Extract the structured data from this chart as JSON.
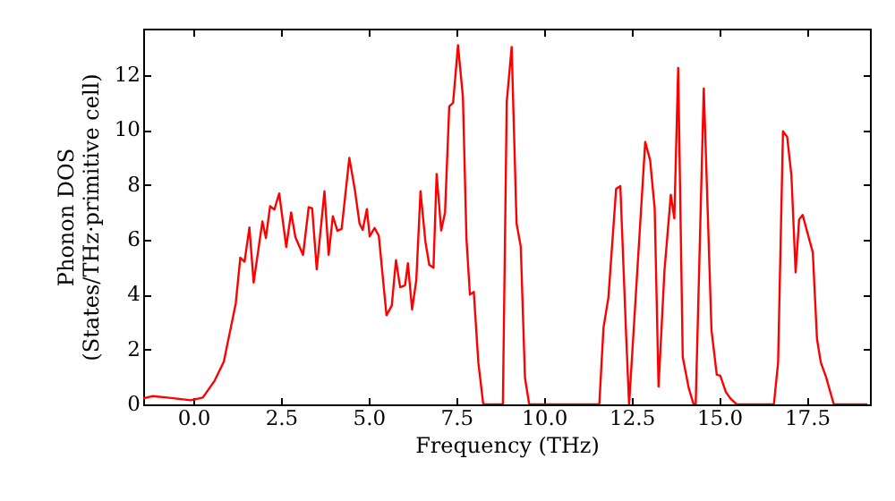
{
  "chart_data": {
    "type": "line",
    "xlabel": "Frequency (THz)",
    "ylabel": "Phonon DOS\n(States/THz·primitive cell)",
    "x": [
      -1.43,
      -1.17,
      -0.74,
      -0.07,
      0.27,
      0.61,
      0.87,
      1.21,
      1.34,
      1.46,
      1.6,
      1.72,
      1.97,
      2.07,
      2.19,
      2.31,
      2.45,
      2.65,
      2.79,
      2.91,
      3.13,
      3.29,
      3.39,
      3.52,
      3.74,
      3.86,
      3.98,
      4.11,
      4.23,
      4.45,
      4.61,
      4.74,
      4.83,
      4.95,
      5.03,
      5.17,
      5.29,
      5.51,
      5.66,
      5.78,
      5.9,
      6.04,
      6.12,
      6.24,
      6.36,
      6.48,
      6.62,
      6.73,
      6.85,
      6.94,
      7.07,
      7.18,
      7.3,
      7.41,
      7.55,
      7.69,
      7.79,
      7.89,
      8.0,
      8.13,
      8.27,
      8.83,
      8.94,
      9.08,
      9.22,
      9.34,
      9.46,
      9.58,
      11.58,
      11.7,
      11.84,
      12.06,
      12.18,
      12.35,
      12.43,
      12.89,
      13.03,
      13.16,
      13.27,
      13.44,
      13.62,
      13.72,
      13.83,
      13.96,
      14.13,
      14.27,
      14.33,
      14.56,
      14.78,
      14.93,
      15.03,
      15.19,
      15.33,
      15.5,
      16.56,
      16.68,
      16.82,
      16.94,
      17.06,
      17.18,
      17.28,
      17.38,
      17.53,
      17.67,
      17.79,
      17.9,
      18.05,
      18.16,
      18.27,
      19.23
    ],
    "series": [
      {
        "color": "#ff0000",
        "values": [
          0.22,
          0.3,
          0.25,
          0.15,
          0.25,
          0.87,
          1.56,
          3.68,
          5.35,
          5.2,
          6.45,
          4.44,
          6.67,
          6.07,
          7.23,
          7.1,
          7.69,
          5.74,
          7.0,
          6.1,
          5.45,
          7.19,
          7.15,
          4.92,
          7.77,
          5.45,
          6.86,
          6.33,
          6.4,
          8.99,
          7.8,
          6.6,
          6.36,
          7.12,
          6.13,
          6.43,
          6.15,
          3.25,
          3.6,
          5.26,
          4.27,
          4.34,
          5.15,
          3.46,
          4.53,
          7.77,
          5.93,
          5.09,
          4.98,
          8.4,
          6.34,
          7.0,
          10.87,
          11.0,
          13.1,
          11.2,
          6.06,
          4.0,
          4.1,
          1.52,
          0,
          0,
          11.04,
          13.03,
          6.6,
          5.75,
          0.97,
          0,
          0,
          2.8,
          3.9,
          7.86,
          7.96,
          2.38,
          0,
          9.57,
          8.9,
          7.14,
          0.65,
          4.9,
          7.64,
          6.78,
          12.27,
          1.73,
          0.6,
          0,
          0,
          11.52,
          2.71,
          1.08,
          1.05,
          0.45,
          0.2,
          0,
          0,
          1.52,
          9.96,
          9.75,
          8.35,
          4.81,
          6.74,
          6.91,
          6.2,
          5.54,
          2.38,
          1.52,
          0.99,
          0.49,
          0,
          0
        ]
      }
    ],
    "xlim": [
      -1.43,
      19.3
    ],
    "ylim": [
      0,
      13.7
    ],
    "xticks": [
      {
        "value": 0,
        "label": "0.0"
      },
      {
        "value": 2.5,
        "label": "2.5"
      },
      {
        "value": 5,
        "label": "5.0"
      },
      {
        "value": 7.5,
        "label": "7.5"
      },
      {
        "value": 10,
        "label": "10.0"
      },
      {
        "value": 12.5,
        "label": "12.5"
      },
      {
        "value": 15,
        "label": "15.0"
      },
      {
        "value": 17.5,
        "label": "17.5"
      }
    ],
    "yticks": [
      0,
      2,
      4,
      6,
      8,
      10,
      12
    ],
    "grid": false,
    "marker": "none",
    "line_style": "solid"
  }
}
